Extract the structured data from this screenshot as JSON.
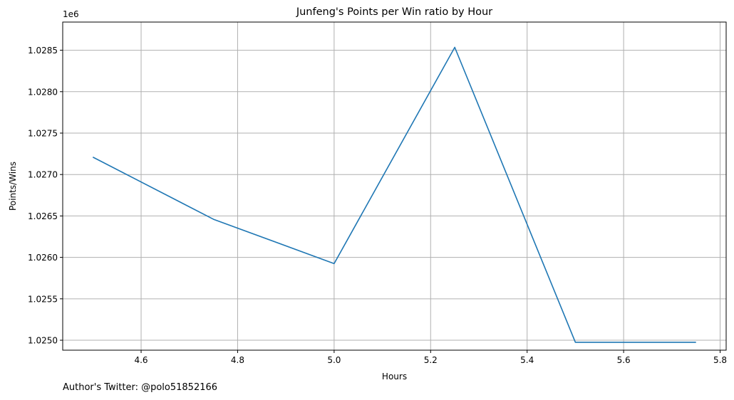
{
  "chart_data": {
    "type": "line",
    "title": "Junfeng's Points per Win ratio by Hour",
    "xlabel": "Hours",
    "ylabel": "Points/Wins",
    "y_offset_label": "1e6",
    "x": [
      4.5,
      4.75,
      5.0,
      5.25,
      5.5,
      5.75
    ],
    "series": [
      {
        "values": [
          1027210,
          1026460,
          1025925,
          1028535,
          1024975,
          1024975
        ],
        "color": "#1f77b4"
      }
    ],
    "xlim": [
      4.4375,
      5.8125
    ],
    "ylim": [
      1024880,
      1028840
    ],
    "x_ticks": [
      4.6,
      4.8,
      5.0,
      5.2,
      5.4,
      5.6,
      5.8
    ],
    "x_tick_labels": [
      "4.6",
      "4.8",
      "5.0",
      "5.2",
      "5.4",
      "5.6",
      "5.8"
    ],
    "y_ticks": [
      1025000,
      1025500,
      1026000,
      1026500,
      1027000,
      1027500,
      1028000,
      1028500
    ],
    "y_tick_labels": [
      "1.0250",
      "1.0255",
      "1.0260",
      "1.0265",
      "1.0270",
      "1.0275",
      "1.0280",
      "1.0285"
    ],
    "y_scale_factor": 1000000,
    "grid": true,
    "grid_color": "#b0b0b0"
  },
  "footer": {
    "note": "Author's Twitter: @polo51852166"
  }
}
